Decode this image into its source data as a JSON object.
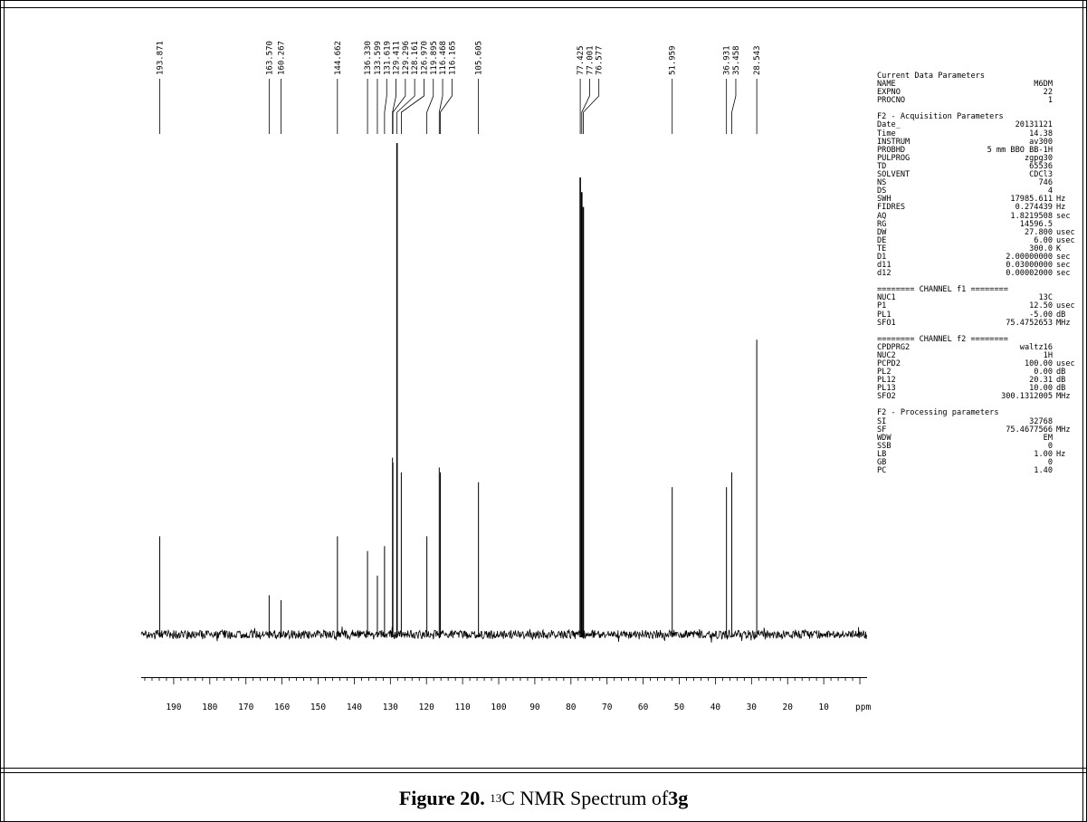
{
  "caption": {
    "figure_label": "Figure 20.",
    "superscript": "13",
    "text_middle": "C NMR Spectrum of ",
    "compound": "3g"
  },
  "chart_data": {
    "type": "nmr_spectrum",
    "xlabel": "ppm",
    "xlim": [
      199,
      -2
    ],
    "x_ticks": [
      190,
      180,
      170,
      160,
      150,
      140,
      130,
      120,
      110,
      100,
      90,
      80,
      70,
      60,
      50,
      40,
      30,
      20,
      10
    ],
    "tick_labels": [
      "190",
      "180",
      "170",
      "160",
      "150",
      "140",
      "130",
      "120",
      "110",
      "100",
      "90",
      "80",
      "70",
      "60",
      "50",
      "40",
      "30",
      "20",
      "10"
    ],
    "peak_labels": [
      "193.871",
      "163.570",
      "160.267",
      "144.662",
      "136.330",
      "133.599",
      "131.619",
      "129.411",
      "129.296",
      "128.161",
      "126.970",
      "119.895",
      "116.468",
      "116.165",
      "105.605",
      "77.425",
      "77.001",
      "76.577",
      "51.959",
      "36.931",
      "35.458",
      "28.543"
    ],
    "peaks": [
      {
        "ppm": 193.871,
        "intensity": 0.2
      },
      {
        "ppm": 163.57,
        "intensity": 0.08
      },
      {
        "ppm": 160.267,
        "intensity": 0.07
      },
      {
        "ppm": 144.662,
        "intensity": 0.2
      },
      {
        "ppm": 136.33,
        "intensity": 0.17
      },
      {
        "ppm": 133.599,
        "intensity": 0.12
      },
      {
        "ppm": 131.619,
        "intensity": 0.18
      },
      {
        "ppm": 129.411,
        "intensity": 0.36
      },
      {
        "ppm": 129.296,
        "intensity": 0.35
      },
      {
        "ppm": 128.161,
        "intensity": 1.0
      },
      {
        "ppm": 126.97,
        "intensity": 0.33
      },
      {
        "ppm": 119.895,
        "intensity": 0.2
      },
      {
        "ppm": 116.468,
        "intensity": 0.34
      },
      {
        "ppm": 116.165,
        "intensity": 0.33
      },
      {
        "ppm": 105.605,
        "intensity": 0.31
      },
      {
        "ppm": 77.425,
        "intensity": 0.93
      },
      {
        "ppm": 77.001,
        "intensity": 0.9
      },
      {
        "ppm": 76.577,
        "intensity": 0.87
      },
      {
        "ppm": 51.959,
        "intensity": 0.3
      },
      {
        "ppm": 36.931,
        "intensity": 0.3
      },
      {
        "ppm": 35.458,
        "intensity": 0.33
      },
      {
        "ppm": 28.543,
        "intensity": 0.6
      }
    ]
  },
  "parameters": [
    {
      "kind": "head",
      "text": "Current Data Parameters"
    },
    {
      "kind": "row",
      "key": "NAME",
      "value": "M6DM",
      "unit": ""
    },
    {
      "kind": "row",
      "key": "EXPNO",
      "value": "22",
      "unit": ""
    },
    {
      "kind": "row",
      "key": "PROCNO",
      "value": "1",
      "unit": ""
    },
    {
      "kind": "gap"
    },
    {
      "kind": "head",
      "text": "F2 - Acquisition Parameters"
    },
    {
      "kind": "row",
      "key": "Date_",
      "value": "20131121",
      "unit": ""
    },
    {
      "kind": "row",
      "key": "Time",
      "value": "14.38",
      "unit": ""
    },
    {
      "kind": "row",
      "key": "INSTRUM",
      "value": "av300",
      "unit": ""
    },
    {
      "kind": "row",
      "key": "PROBHD",
      "value": "5 mm BBO BB-1H",
      "unit": ""
    },
    {
      "kind": "row",
      "key": "PULPROG",
      "value": "zgpg30",
      "unit": ""
    },
    {
      "kind": "row",
      "key": "TD",
      "value": "65536",
      "unit": ""
    },
    {
      "kind": "row",
      "key": "SOLVENT",
      "value": "CDCl3",
      "unit": ""
    },
    {
      "kind": "row",
      "key": "NS",
      "value": "746",
      "unit": ""
    },
    {
      "kind": "row",
      "key": "DS",
      "value": "4",
      "unit": ""
    },
    {
      "kind": "row",
      "key": "SWH",
      "value": "17985.611",
      "unit": "Hz"
    },
    {
      "kind": "row",
      "key": "FIDRES",
      "value": "0.274439",
      "unit": "Hz"
    },
    {
      "kind": "row",
      "key": "AQ",
      "value": "1.8219508",
      "unit": "sec"
    },
    {
      "kind": "row",
      "key": "RG",
      "value": "14596.5",
      "unit": ""
    },
    {
      "kind": "row",
      "key": "DW",
      "value": "27.800",
      "unit": "usec"
    },
    {
      "kind": "row",
      "key": "DE",
      "value": "6.00",
      "unit": "usec"
    },
    {
      "kind": "row",
      "key": "TE",
      "value": "300.0",
      "unit": "K"
    },
    {
      "kind": "row",
      "key": "D1",
      "value": "2.00000000",
      "unit": "sec"
    },
    {
      "kind": "row",
      "key": "d11",
      "value": "0.03000000",
      "unit": "sec"
    },
    {
      "kind": "row",
      "key": "d12",
      "value": "0.00002000",
      "unit": "sec"
    },
    {
      "kind": "gap"
    },
    {
      "kind": "head",
      "text": "======== CHANNEL f1 ========"
    },
    {
      "kind": "row",
      "key": "NUC1",
      "value": "13C",
      "unit": ""
    },
    {
      "kind": "row",
      "key": "P1",
      "value": "12.50",
      "unit": "usec"
    },
    {
      "kind": "row",
      "key": "PL1",
      "value": "-5.00",
      "unit": "dB"
    },
    {
      "kind": "row",
      "key": "SFO1",
      "value": "75.4752653",
      "unit": "MHz"
    },
    {
      "kind": "gap"
    },
    {
      "kind": "head",
      "text": "======== CHANNEL f2 ========"
    },
    {
      "kind": "row",
      "key": "CPDPRG2",
      "value": "waltz16",
      "unit": ""
    },
    {
      "kind": "row",
      "key": "NUC2",
      "value": "1H",
      "unit": ""
    },
    {
      "kind": "row",
      "key": "PCPD2",
      "value": "100.00",
      "unit": "usec"
    },
    {
      "kind": "row",
      "key": "PL2",
      "value": "0.00",
      "unit": "dB"
    },
    {
      "kind": "row",
      "key": "PL12",
      "value": "20.31",
      "unit": "dB"
    },
    {
      "kind": "row",
      "key": "PL13",
      "value": "10.00",
      "unit": "dB"
    },
    {
      "kind": "row",
      "key": "SFO2",
      "value": "300.1312005",
      "unit": "MHz"
    },
    {
      "kind": "gap"
    },
    {
      "kind": "head",
      "text": "F2 - Processing parameters"
    },
    {
      "kind": "row",
      "key": "SI",
      "value": "32768",
      "unit": ""
    },
    {
      "kind": "row",
      "key": "SF",
      "value": "75.4677566",
      "unit": "MHz"
    },
    {
      "kind": "row",
      "key": "WDW",
      "value": "EM",
      "unit": ""
    },
    {
      "kind": "row",
      "key": "SSB",
      "value": "0",
      "unit": ""
    },
    {
      "kind": "row",
      "key": "LB",
      "value": "1.00",
      "unit": "Hz"
    },
    {
      "kind": "row",
      "key": "GB",
      "value": "0",
      "unit": ""
    },
    {
      "kind": "row",
      "key": "PC",
      "value": "1.40",
      "unit": ""
    }
  ]
}
